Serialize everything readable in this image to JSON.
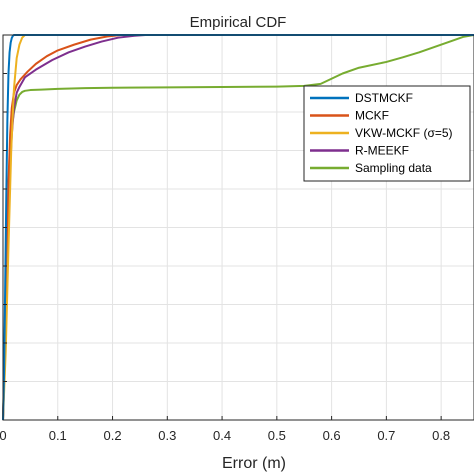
{
  "chart_data": {
    "type": "line",
    "title": "Empirical CDF",
    "xlabel": "Error (m)",
    "ylabel": "",
    "xlim": [
      0,
      0.86
    ],
    "ylim": [
      0,
      1
    ],
    "x_ticks": [
      0,
      0.1,
      0.2,
      0.3,
      0.4,
      0.5,
      0.6,
      0.7,
      0.8
    ],
    "x_tick_labels": [
      "0",
      "0.1",
      "0.2",
      "0.3",
      "0.4",
      "0.5",
      "0.6",
      "0.7",
      "0.8"
    ],
    "y_ticks": [
      0,
      0.1,
      0.2,
      0.3,
      0.4,
      0.5,
      0.6,
      0.7,
      0.8,
      0.9,
      1
    ],
    "grid": true,
    "legend_position": "top-right",
    "series": [
      {
        "name": "DSTMCKF",
        "color": "#0072BD",
        "x": [
          0,
          0.002,
          0.004,
          0.006,
          0.008,
          0.01,
          0.012,
          0.014,
          0.016,
          0.018,
          0.02
        ],
        "y": [
          0,
          0.12,
          0.35,
          0.58,
          0.78,
          0.9,
          0.955,
          0.98,
          0.992,
          0.998,
          1
        ]
      },
      {
        "name": "MCKF",
        "color": "#D95319",
        "x": [
          0,
          0.004,
          0.007,
          0.01,
          0.013,
          0.016,
          0.02,
          0.025,
          0.032,
          0.045,
          0.06,
          0.08,
          0.1,
          0.13,
          0.16,
          0.19,
          0.215
        ],
        "y": [
          0,
          0.2,
          0.45,
          0.62,
          0.74,
          0.81,
          0.85,
          0.87,
          0.885,
          0.905,
          0.925,
          0.945,
          0.96,
          0.975,
          0.988,
          0.996,
          1
        ]
      },
      {
        "name": "VKW-MCKF (σ=5)",
        "color": "#EDB120",
        "x": [
          0,
          0.005,
          0.01,
          0.015,
          0.02,
          0.025,
          0.03,
          0.035,
          0.04
        ],
        "y": [
          0,
          0.18,
          0.45,
          0.7,
          0.86,
          0.94,
          0.975,
          0.993,
          1
        ]
      },
      {
        "name": "R-MEEKF",
        "color": "#7E2F8E",
        "x": [
          0,
          0.004,
          0.008,
          0.012,
          0.016,
          0.02,
          0.025,
          0.03,
          0.04,
          0.06,
          0.09,
          0.12,
          0.15,
          0.18,
          0.21,
          0.24,
          0.26
        ],
        "y": [
          0,
          0.2,
          0.45,
          0.62,
          0.74,
          0.81,
          0.85,
          0.865,
          0.89,
          0.91,
          0.935,
          0.955,
          0.97,
          0.983,
          0.993,
          0.998,
          1
        ]
      },
      {
        "name": "Sampling data",
        "color": "#77AC30",
        "x": [
          0,
          0.003,
          0.006,
          0.009,
          0.012,
          0.015,
          0.02,
          0.025,
          0.03,
          0.035,
          0.04,
          0.05,
          0.07,
          0.1,
          0.15,
          0.2,
          0.3,
          0.4,
          0.5,
          0.55,
          0.58,
          0.62,
          0.65,
          0.7,
          0.73,
          0.76,
          0.79,
          0.82,
          0.84,
          0.86
        ],
        "y": [
          0,
          0.2,
          0.4,
          0.55,
          0.67,
          0.75,
          0.8,
          0.83,
          0.845,
          0.852,
          0.855,
          0.857,
          0.858,
          0.86,
          0.862,
          0.863,
          0.864,
          0.865,
          0.866,
          0.868,
          0.873,
          0.9,
          0.915,
          0.93,
          0.942,
          0.955,
          0.97,
          0.985,
          0.995,
          1
        ]
      }
    ]
  }
}
